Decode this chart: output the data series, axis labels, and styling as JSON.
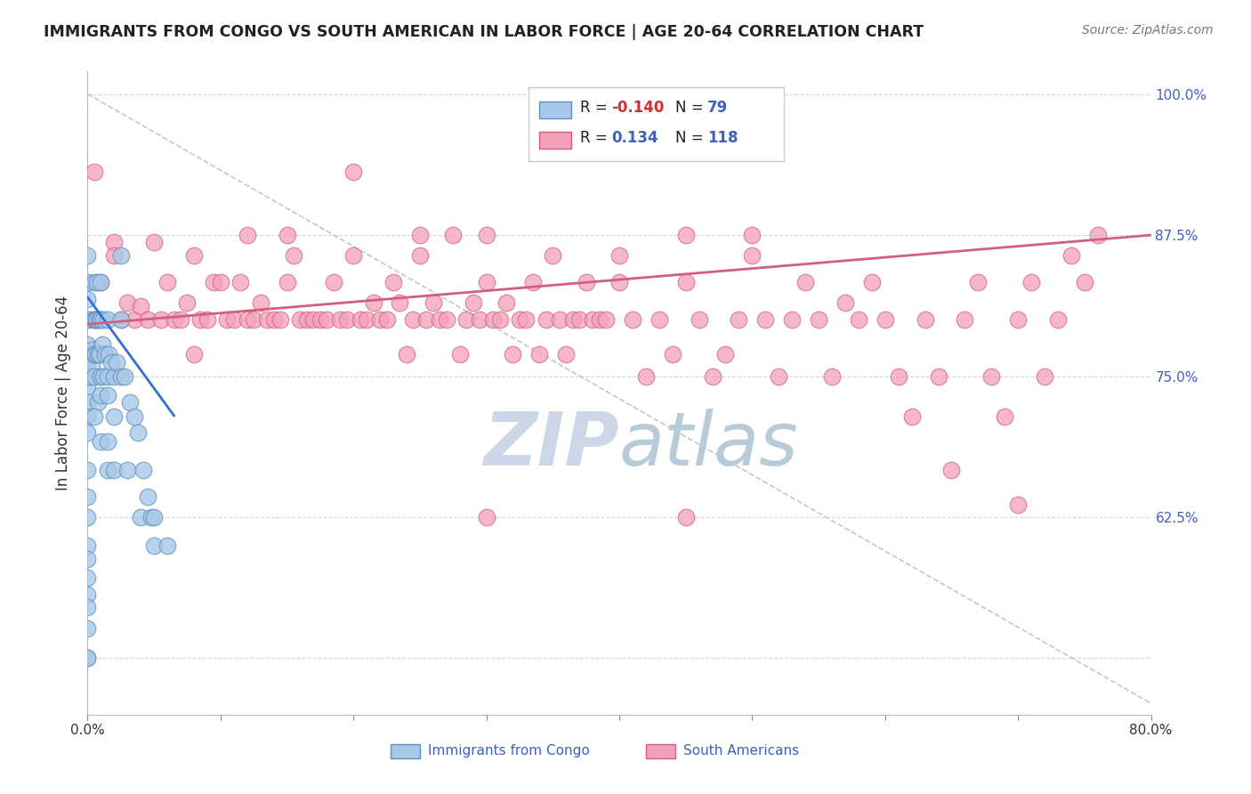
{
  "title": "IMMIGRANTS FROM CONGO VS SOUTH AMERICAN IN LABOR FORCE | AGE 20-64 CORRELATION CHART",
  "source": "Source: ZipAtlas.com",
  "ylabel": "In Labor Force | Age 20-64",
  "xlim": [
    0.0,
    0.8
  ],
  "ylim": [
    0.45,
    1.02
  ],
  "xticks": [
    0.0,
    0.1,
    0.2,
    0.3,
    0.4,
    0.5,
    0.6,
    0.7,
    0.8
  ],
  "yticks": [
    0.5,
    0.625,
    0.75,
    0.875,
    1.0
  ],
  "congo_color": "#a8c8e8",
  "south_color": "#f4a0b8",
  "congo_edge": "#6090c0",
  "south_edge": "#d06080",
  "trendline_congo_color": "#3070d0",
  "trendline_south_color": "#d06080",
  "dashed_line_color": "#b0b8c8",
  "watermark_color": "#ccd8e8",
  "background_color": "#ffffff",
  "congo_scatter": [
    [
      0.0,
      0.833
    ],
    [
      0.0,
      0.857
    ],
    [
      0.0,
      0.818
    ],
    [
      0.0,
      0.8
    ],
    [
      0.0,
      0.778
    ],
    [
      0.0,
      0.762
    ],
    [
      0.0,
      0.75
    ],
    [
      0.0,
      0.741
    ],
    [
      0.0,
      0.727
    ],
    [
      0.0,
      0.714
    ],
    [
      0.0,
      0.7
    ],
    [
      0.0,
      0.667
    ],
    [
      0.0,
      0.643
    ],
    [
      0.0,
      0.625
    ],
    [
      0.0,
      0.6
    ],
    [
      0.0,
      0.571
    ],
    [
      0.0,
      0.556
    ],
    [
      0.0,
      0.526
    ],
    [
      0.0,
      0.5
    ],
    [
      0.0,
      0.5
    ],
    [
      0.001,
      0.8
    ],
    [
      0.001,
      0.769
    ],
    [
      0.001,
      0.75
    ],
    [
      0.002,
      0.769
    ],
    [
      0.002,
      0.75
    ],
    [
      0.003,
      0.76
    ],
    [
      0.004,
      0.773
    ],
    [
      0.005,
      0.833
    ],
    [
      0.005,
      0.8
    ],
    [
      0.005,
      0.8
    ],
    [
      0.005,
      0.769
    ],
    [
      0.005,
      0.75
    ],
    [
      0.006,
      0.8
    ],
    [
      0.006,
      0.769
    ],
    [
      0.007,
      0.833
    ],
    [
      0.007,
      0.8
    ],
    [
      0.007,
      0.8
    ],
    [
      0.008,
      0.769
    ],
    [
      0.008,
      0.727
    ],
    [
      0.009,
      0.8
    ],
    [
      0.009,
      0.769
    ],
    [
      0.01,
      0.833
    ],
    [
      0.01,
      0.8
    ],
    [
      0.01,
      0.8
    ],
    [
      0.01,
      0.75
    ],
    [
      0.01,
      0.733
    ],
    [
      0.011,
      0.778
    ],
    [
      0.012,
      0.8
    ],
    [
      0.012,
      0.75
    ],
    [
      0.013,
      0.769
    ],
    [
      0.015,
      0.8
    ],
    [
      0.015,
      0.75
    ],
    [
      0.015,
      0.733
    ],
    [
      0.015,
      0.667
    ],
    [
      0.016,
      0.769
    ],
    [
      0.018,
      0.762
    ],
    [
      0.02,
      0.75
    ],
    [
      0.02,
      0.667
    ],
    [
      0.022,
      0.762
    ],
    [
      0.025,
      0.857
    ],
    [
      0.025,
      0.8
    ],
    [
      0.025,
      0.75
    ],
    [
      0.028,
      0.75
    ],
    [
      0.03,
      0.667
    ],
    [
      0.032,
      0.727
    ],
    [
      0.035,
      0.714
    ],
    [
      0.038,
      0.7
    ],
    [
      0.04,
      0.625
    ],
    [
      0.042,
      0.667
    ],
    [
      0.045,
      0.643
    ],
    [
      0.048,
      0.625
    ],
    [
      0.05,
      0.625
    ],
    [
      0.05,
      0.6
    ],
    [
      0.06,
      0.6
    ],
    [
      0.0,
      0.588
    ],
    [
      0.0,
      0.545
    ],
    [
      0.005,
      0.714
    ],
    [
      0.01,
      0.692
    ],
    [
      0.015,
      0.692
    ],
    [
      0.02,
      0.714
    ]
  ],
  "south_scatter": [
    [
      0.01,
      0.833
    ],
    [
      0.02,
      0.869
    ],
    [
      0.025,
      0.8
    ],
    [
      0.03,
      0.815
    ],
    [
      0.035,
      0.8
    ],
    [
      0.04,
      0.812
    ],
    [
      0.045,
      0.8
    ],
    [
      0.05,
      0.869
    ],
    [
      0.055,
      0.8
    ],
    [
      0.06,
      0.833
    ],
    [
      0.065,
      0.8
    ],
    [
      0.07,
      0.8
    ],
    [
      0.075,
      0.815
    ],
    [
      0.08,
      0.769
    ],
    [
      0.085,
      0.8
    ],
    [
      0.09,
      0.8
    ],
    [
      0.095,
      0.833
    ],
    [
      0.1,
      0.833
    ],
    [
      0.105,
      0.8
    ],
    [
      0.11,
      0.8
    ],
    [
      0.115,
      0.833
    ],
    [
      0.12,
      0.8
    ],
    [
      0.125,
      0.8
    ],
    [
      0.13,
      0.815
    ],
    [
      0.135,
      0.8
    ],
    [
      0.14,
      0.8
    ],
    [
      0.145,
      0.8
    ],
    [
      0.15,
      0.833
    ],
    [
      0.155,
      0.857
    ],
    [
      0.16,
      0.8
    ],
    [
      0.165,
      0.8
    ],
    [
      0.17,
      0.8
    ],
    [
      0.175,
      0.8
    ],
    [
      0.18,
      0.8
    ],
    [
      0.185,
      0.833
    ],
    [
      0.19,
      0.8
    ],
    [
      0.195,
      0.8
    ],
    [
      0.2,
      0.857
    ],
    [
      0.205,
      0.8
    ],
    [
      0.21,
      0.8
    ],
    [
      0.215,
      0.815
    ],
    [
      0.22,
      0.8
    ],
    [
      0.225,
      0.8
    ],
    [
      0.23,
      0.833
    ],
    [
      0.235,
      0.815
    ],
    [
      0.24,
      0.769
    ],
    [
      0.245,
      0.8
    ],
    [
      0.25,
      0.857
    ],
    [
      0.255,
      0.8
    ],
    [
      0.26,
      0.815
    ],
    [
      0.265,
      0.8
    ],
    [
      0.27,
      0.8
    ],
    [
      0.275,
      0.875
    ],
    [
      0.28,
      0.769
    ],
    [
      0.285,
      0.8
    ],
    [
      0.29,
      0.815
    ],
    [
      0.295,
      0.8
    ],
    [
      0.3,
      0.833
    ],
    [
      0.305,
      0.8
    ],
    [
      0.31,
      0.8
    ],
    [
      0.315,
      0.815
    ],
    [
      0.32,
      0.769
    ],
    [
      0.325,
      0.8
    ],
    [
      0.33,
      0.8
    ],
    [
      0.335,
      0.833
    ],
    [
      0.34,
      0.769
    ],
    [
      0.345,
      0.8
    ],
    [
      0.35,
      0.857
    ],
    [
      0.355,
      0.8
    ],
    [
      0.36,
      0.769
    ],
    [
      0.365,
      0.8
    ],
    [
      0.37,
      0.8
    ],
    [
      0.375,
      0.833
    ],
    [
      0.38,
      0.8
    ],
    [
      0.385,
      0.8
    ],
    [
      0.39,
      0.8
    ],
    [
      0.4,
      0.833
    ],
    [
      0.41,
      0.8
    ],
    [
      0.42,
      0.75
    ],
    [
      0.43,
      0.8
    ],
    [
      0.44,
      0.769
    ],
    [
      0.45,
      0.833
    ],
    [
      0.46,
      0.8
    ],
    [
      0.47,
      0.75
    ],
    [
      0.48,
      0.769
    ],
    [
      0.49,
      0.8
    ],
    [
      0.5,
      0.857
    ],
    [
      0.51,
      0.8
    ],
    [
      0.52,
      0.75
    ],
    [
      0.53,
      0.8
    ],
    [
      0.54,
      0.833
    ],
    [
      0.55,
      0.8
    ],
    [
      0.56,
      0.75
    ],
    [
      0.57,
      0.815
    ],
    [
      0.58,
      0.8
    ],
    [
      0.59,
      0.833
    ],
    [
      0.6,
      0.8
    ],
    [
      0.61,
      0.75
    ],
    [
      0.62,
      0.714
    ],
    [
      0.63,
      0.8
    ],
    [
      0.64,
      0.75
    ],
    [
      0.65,
      0.667
    ],
    [
      0.66,
      0.8
    ],
    [
      0.67,
      0.833
    ],
    [
      0.68,
      0.75
    ],
    [
      0.69,
      0.714
    ],
    [
      0.7,
      0.8
    ],
    [
      0.71,
      0.833
    ],
    [
      0.72,
      0.75
    ],
    [
      0.73,
      0.8
    ],
    [
      0.74,
      0.857
    ],
    [
      0.75,
      0.833
    ],
    [
      0.005,
      0.931
    ],
    [
      0.02,
      0.857
    ],
    [
      0.08,
      0.857
    ],
    [
      0.12,
      0.875
    ],
    [
      0.15,
      0.875
    ],
    [
      0.2,
      0.931
    ],
    [
      0.25,
      0.875
    ],
    [
      0.3,
      0.875
    ],
    [
      0.4,
      0.857
    ],
    [
      0.45,
      0.875
    ],
    [
      0.5,
      0.875
    ],
    [
      0.76,
      0.875
    ],
    [
      0.3,
      0.625
    ],
    [
      0.45,
      0.625
    ],
    [
      0.7,
      0.636
    ]
  ]
}
